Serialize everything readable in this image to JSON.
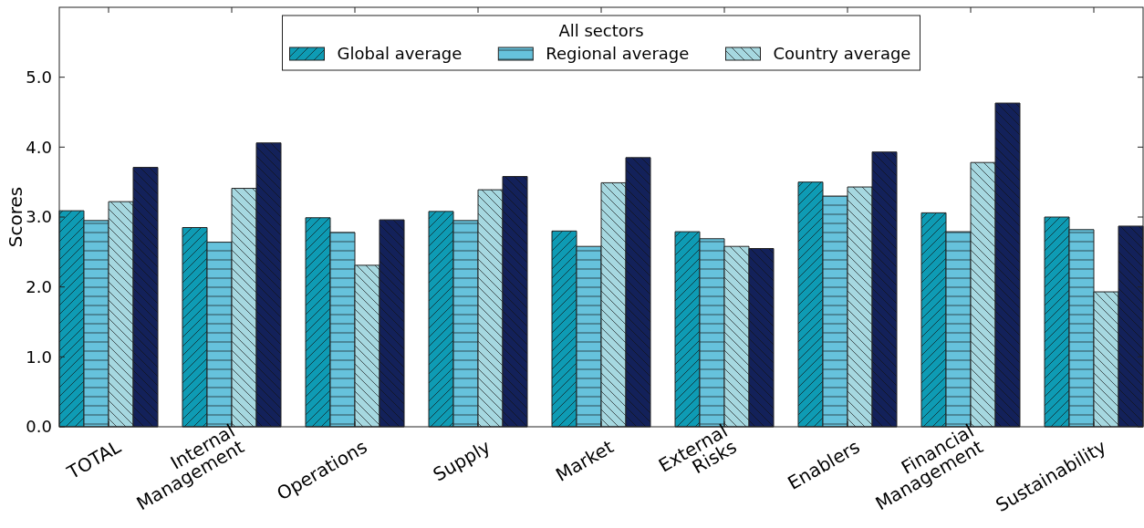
{
  "chart_data": {
    "type": "bar",
    "ylabel": "Scores",
    "legend_title": "All sectors",
    "legend": "top",
    "categories": [
      "TOTAL",
      "Internal\nManagement",
      "Operations",
      "Supply",
      "Market",
      "External\nRisks",
      "Enablers",
      "Financial\nManagement",
      "Sustainability"
    ],
    "series": [
      {
        "name": "Global average",
        "color": "#0e9bb4",
        "values": [
          3.09,
          2.85,
          2.99,
          3.08,
          2.8,
          2.79,
          3.5,
          3.06,
          3.0
        ]
      },
      {
        "name": "Regional average",
        "color": "#66c2dc",
        "values": [
          2.95,
          2.64,
          2.78,
          2.95,
          2.58,
          2.69,
          3.3,
          2.79,
          2.82
        ]
      },
      {
        "name": "Country average",
        "color": "#a6d8e0",
        "values": [
          3.22,
          3.41,
          2.31,
          3.39,
          3.49,
          2.58,
          3.43,
          3.78,
          1.93
        ]
      },
      {
        "color": "#13215a",
        "values": [
          3.71,
          4.06,
          2.96,
          3.58,
          3.85,
          2.55,
          3.93,
          4.63,
          2.87
        ]
      }
    ],
    "ylim": [
      0,
      6
    ],
    "yticks": [
      {
        "value": 0,
        "label": "0.0"
      },
      {
        "value": 1,
        "label": "1.0"
      },
      {
        "value": 2,
        "label": "2.0"
      },
      {
        "value": 3,
        "label": "3.0"
      },
      {
        "value": 4,
        "label": "4.0"
      },
      {
        "value": 5,
        "label": "5.0"
      }
    ],
    "grid": false
  }
}
